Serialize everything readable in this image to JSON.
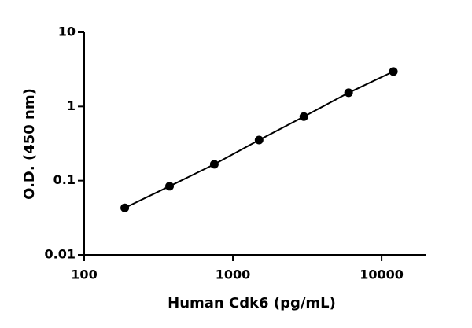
{
  "chart_data": {
    "type": "scatter",
    "x_label": "Human Cdk6 (pg/mL)",
    "y_label": "O.D. (450 nm)",
    "x": [
      187.5,
      375,
      750,
      1500,
      3000,
      6000,
      12000
    ],
    "values": [
      0.043,
      0.084,
      0.166,
      0.353,
      0.73,
      1.53,
      2.96
    ],
    "color": "#000000",
    "line": true,
    "log_x": true,
    "log_y": true,
    "xlim": [
      100,
      20000
    ],
    "xticks": [
      100,
      1000,
      10000
    ],
    "ylim": [
      0.01,
      10
    ],
    "yticks": [
      0.01,
      0.1,
      1,
      10
    ]
  }
}
